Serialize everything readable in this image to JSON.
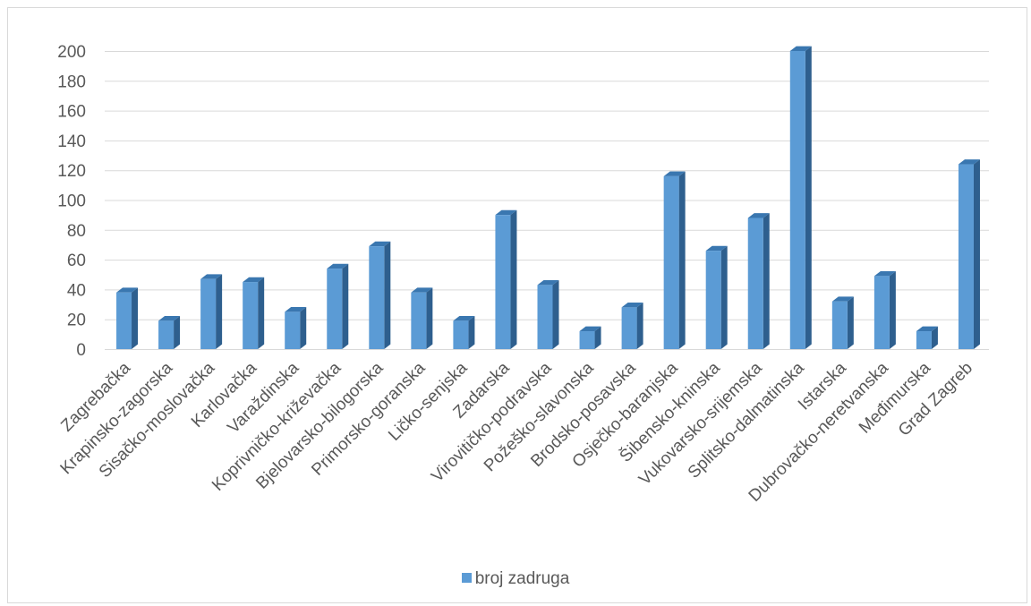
{
  "chart_data": {
    "type": "bar",
    "title": "",
    "xlabel": "",
    "ylabel": "",
    "ylim": [
      0,
      200
    ],
    "yticks": [
      0,
      20,
      40,
      60,
      80,
      100,
      120,
      140,
      160,
      180,
      200
    ],
    "grid": true,
    "legend_position": "bottom",
    "categories": [
      "Zagrebačka",
      "Krapinsko-zagorska",
      "Sisačko-moslovačka",
      "Karlovačka",
      "Varaždinska",
      "Koprivničko-križevačka",
      "Bjelovarsko-bilogorska",
      "Primorsko-goranska",
      "Ličko-senjska",
      "Zadarska",
      "Virovitičko-podravska",
      "Požeško-slavonska",
      "Brodsko-posavska",
      "Osječko-baranjska",
      "Šibensko-kninska",
      "Vukovarsko-srijemska",
      "Splitsko-dalmatinska",
      "Istarska",
      "Dubrovačko-neretvanska",
      "Međimurska",
      "Grad Zagreb"
    ],
    "series": [
      {
        "name": "broj zadruga",
        "color": "#5b9bd5",
        "values": [
          38,
          19,
          47,
          45,
          25,
          54,
          69,
          38,
          19,
          90,
          43,
          12,
          28,
          116,
          66,
          88,
          200,
          32,
          49,
          12,
          124
        ]
      }
    ]
  }
}
